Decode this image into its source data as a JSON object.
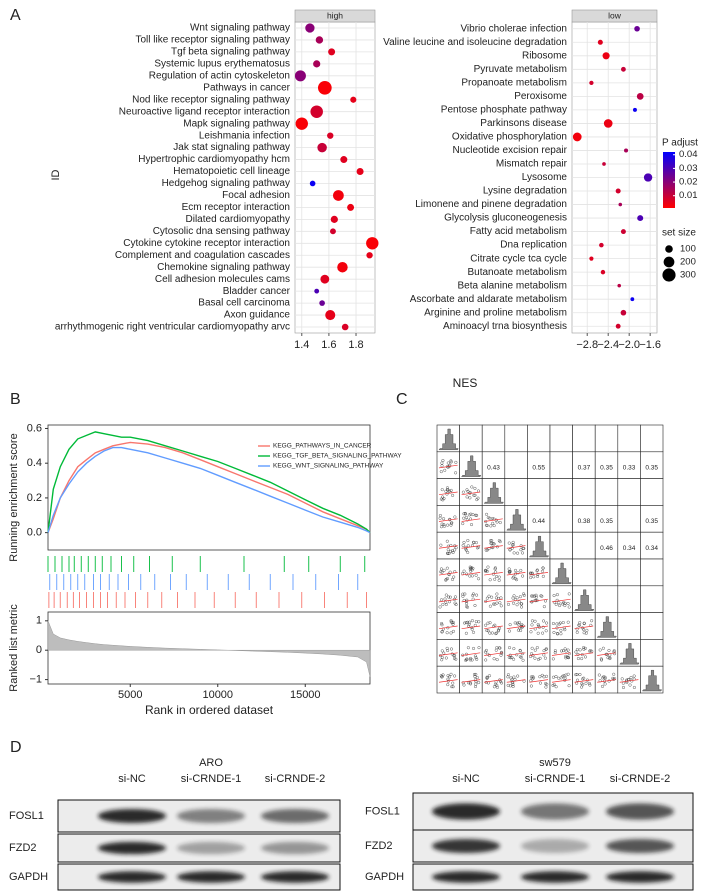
{
  "panel_labels": [
    "A",
    "B",
    "C",
    "D"
  ],
  "panel_a": {
    "y_label": "ID",
    "x_label": "NES",
    "color_legend": {
      "title": "P adjust",
      "ticks": [
        0.04,
        0.03,
        0.02,
        0.01
      ],
      "lim": [
        0.001,
        0.042
      ],
      "low_color": "#ff0000",
      "high_color": "#0000ff"
    },
    "size_legend": {
      "title": "set size",
      "values": [
        100,
        200,
        300
      ]
    }
  },
  "chart_data": [
    {
      "type": "dotplot",
      "strip": "high",
      "categories": [
        "Wnt signaling pathway",
        "Toll like receptor signaling pathway",
        "Tgf beta signaling pathway",
        "Systemic lupus erythematosus",
        "Regulation of actin cytoskeleton",
        "Pathways in cancer",
        "Nod like receptor signaling pathway",
        "Neuroactive ligand receptor interaction",
        "Mapk signaling pathway",
        "Leishmania infection",
        "Jak stat signaling pathway",
        "Hypertrophic cardiomyopathy hcm",
        "Hematopoietic cell lineage",
        "Hedgehog signaling pathway",
        "Focal adhesion",
        "Ecm receptor interaction",
        "Dilated cardiomyopathy",
        "Cytosolic dna sensing pathway",
        "Cytokine cytokine receptor interaction",
        "Complement and coagulation cascades",
        "Chemokine signaling pathway",
        "Cell adhesion molecules cams",
        "Bladder cancer",
        "Basal cell carcinoma",
        "Axon guidance",
        "arrhythmogenic right ventricular cardiomyopathy arvc"
      ],
      "values": [
        1.46,
        1.53,
        1.62,
        1.51,
        1.39,
        1.57,
        1.78,
        1.51,
        1.4,
        1.61,
        1.55,
        1.71,
        1.83,
        1.48,
        1.67,
        1.76,
        1.64,
        1.63,
        1.92,
        1.9,
        1.7,
        1.57,
        1.51,
        1.55,
        1.61,
        1.72
      ],
      "sizes": [
        150,
        95,
        85,
        90,
        210,
        325,
        65,
        270,
        265,
        70,
        155,
        85,
        85,
        55,
        200,
        84,
        90,
        60,
        265,
        70,
        190,
        135,
        40,
        55,
        175,
        75
      ],
      "padj": [
        0.02,
        0.015,
        0.006,
        0.015,
        0.02,
        0.002,
        0.005,
        0.008,
        0.002,
        0.007,
        0.01,
        0.006,
        0.005,
        0.04,
        0.003,
        0.004,
        0.006,
        0.008,
        0.002,
        0.005,
        0.003,
        0.006,
        0.03,
        0.025,
        0.005,
        0.007
      ],
      "xlim": [
        1.35,
        1.94
      ],
      "xticks": [
        1.4,
        1.6,
        1.8
      ],
      "grid": true
    },
    {
      "type": "dotplot",
      "strip": "low",
      "categories": [
        "Vibrio cholerae infection",
        "Valine leucine and isoleucine degradation",
        "Ribosome",
        "Pyruvate metabolism",
        "Propanoate metabolism",
        "Peroxisome",
        "Pentose phosphate pathway",
        "Parkinsons disease",
        "Oxidative phosphorylation",
        "Nucleotide excision repair",
        "Mismatch repair",
        "Lysosome",
        "Lysine degradation",
        "Limonene and pinene degradation",
        "Glycolysis gluconeogenesis",
        "Fatty acid metabolism",
        "Dna replication",
        "Citrate cycle tca cycle",
        "Butanoate metabolism",
        "Beta alanine metabolism",
        "Ascorbate and aldarate metabolism",
        "Arginine and proline metabolism",
        "Aminoacyl trna biosynthesis"
      ],
      "values": [
        -1.85,
        -2.55,
        -2.44,
        -2.11,
        -2.72,
        -1.79,
        -1.89,
        -2.4,
        -2.99,
        -2.06,
        -2.48,
        -1.64,
        -2.21,
        -2.17,
        -1.79,
        -2.11,
        -2.53,
        -2.72,
        -2.5,
        -2.19,
        -1.94,
        -2.11,
        -2.21
      ],
      "sizes": [
        54,
        44,
        88,
        40,
        32,
        79,
        27,
        130,
        133,
        28,
        23,
        121,
        44,
        22,
        62,
        42,
        36,
        30,
        34,
        22,
        25,
        54,
        41
      ],
      "padj": [
        0.025,
        0.006,
        0.004,
        0.01,
        0.008,
        0.012,
        0.04,
        0.004,
        0.003,
        0.015,
        0.01,
        0.03,
        0.008,
        0.015,
        0.03,
        0.009,
        0.008,
        0.006,
        0.007,
        0.012,
        0.04,
        0.01,
        0.008
      ],
      "xlim": [
        -3.09,
        -1.47
      ],
      "xticks": [
        {
          "value": -2.8,
          "label": "−2.8"
        },
        {
          "value": -2.4,
          "label": "−2.4"
        },
        {
          "value": -2.0,
          "label": "−2.0"
        },
        {
          "value": -1.6,
          "label": "−1.6"
        }
      ],
      "grid": true
    },
    {
      "type": "gsea",
      "y_label": "Running enrichment score",
      "x": [
        300,
        600,
        1000,
        1500,
        2000,
        2500,
        3000,
        3500,
        4000,
        4500,
        5000,
        6000,
        7000,
        8000,
        9000,
        10000,
        11000,
        12000,
        13000,
        14000,
        15000,
        16000,
        17000,
        18000,
        18500,
        18700
      ],
      "series": [
        {
          "name": "KEGG_PATHWAYS_IN_CANCER",
          "color": "#f8766d",
          "values": [
            0,
            0.08,
            0.2,
            0.3,
            0.38,
            0.42,
            0.46,
            0.48,
            0.5,
            0.51,
            0.52,
            0.51,
            0.49,
            0.46,
            0.42,
            0.38,
            0.34,
            0.3,
            0.26,
            0.22,
            0.17,
            0.12,
            0.08,
            0.04,
            0.02,
            0
          ],
          "hits": [
            350,
            650,
            1000,
            1400,
            1750,
            2100,
            2500,
            2900,
            3300,
            3700,
            4200,
            4700,
            5300,
            6000,
            6800,
            7700,
            8700,
            9800,
            11000,
            12200,
            13500,
            14800,
            16100,
            17400,
            18500
          ]
        },
        {
          "name": "KEGG_TGF_BETA_SIGNALING_PATHWAY",
          "color": "#00ba38",
          "values": [
            0,
            0.25,
            0.38,
            0.48,
            0.54,
            0.56,
            0.58,
            0.57,
            0.56,
            0.55,
            0.55,
            0.53,
            0.5,
            0.47,
            0.44,
            0.41,
            0.37,
            0.33,
            0.29,
            0.24,
            0.19,
            0.14,
            0.1,
            0.05,
            0.02,
            0
          ],
          "hits": [
            300,
            700,
            1100,
            1500,
            1800,
            2200,
            2600,
            3000,
            3400,
            3900,
            4500,
            5200,
            6100,
            7400,
            9000,
            11500,
            13800,
            15200,
            17000,
            18400
          ]
        },
        {
          "name": "KEGG_WNT_SIGNALING_PATHWAY",
          "color": "#619cff",
          "values": [
            0,
            0.1,
            0.2,
            0.28,
            0.35,
            0.4,
            0.44,
            0.47,
            0.49,
            0.49,
            0.48,
            0.46,
            0.43,
            0.4,
            0.37,
            0.33,
            0.29,
            0.25,
            0.21,
            0.17,
            0.13,
            0.09,
            0.06,
            0.03,
            0.01,
            0
          ],
          "hits": [
            400,
            800,
            1200,
            1600,
            2000,
            2400,
            2900,
            3300,
            3800,
            4300,
            4900,
            5600,
            6400,
            7300,
            8200,
            9400,
            10600,
            11800,
            13000,
            14300,
            15600,
            16900,
            18000
          ]
        }
      ],
      "xlim": [
        300,
        18700
      ],
      "ylim": [
        -0.1,
        0.62
      ],
      "yticks": [
        {
          "value": 0,
          "label": "0.0"
        },
        0.2,
        0.4,
        0.6
      ]
    },
    {
      "type": "area",
      "y_label": "Ranked list metric",
      "x_label": "Rank in ordered dataset",
      "color": "#bdbdbd",
      "x": [
        300,
        600,
        1000,
        1500,
        2000,
        2500,
        3000,
        3500,
        4000,
        4500,
        5000,
        6000,
        7000,
        8000,
        9000,
        10000,
        11000,
        12000,
        13000,
        14000,
        15000,
        16000,
        17000,
        18000,
        18500,
        18700
      ],
      "values": [
        1.0,
        0.55,
        0.42,
        0.35,
        0.3,
        0.26,
        0.22,
        0.19,
        0.17,
        0.15,
        0.13,
        0.1,
        0.07,
        0.05,
        0.03,
        0.01,
        -0.01,
        -0.03,
        -0.05,
        -0.07,
        -0.1,
        -0.13,
        -0.17,
        -0.23,
        -0.4,
        -0.9
      ],
      "xlim": [
        300,
        18700
      ],
      "xticks": [
        5000,
        10000,
        15000
      ],
      "ylim": [
        -1.15,
        1.3
      ],
      "yticks": [
        {
          "value": -1,
          "label": "−1"
        },
        0,
        1
      ]
    }
  ],
  "panel_c": {
    "cells": [
      [
        null,
        null,
        null,
        null,
        null,
        null,
        null,
        null,
        null,
        null
      ],
      [
        null,
        null,
        0.43,
        null,
        0.55,
        null,
        0.37,
        0.35,
        0.33,
        0.35
      ],
      [
        null,
        null,
        null,
        null,
        null,
        null,
        null,
        null,
        null,
        null
      ],
      [
        null,
        null,
        null,
        null,
        0.44,
        null,
        0.38,
        0.35,
        null,
        0.35
      ],
      [
        null,
        null,
        null,
        null,
        null,
        null,
        null,
        0.46,
        0.34,
        0.34
      ],
      [
        null,
        null,
        null,
        null,
        null,
        null,
        null,
        null,
        null,
        null
      ],
      [
        null,
        null,
        null,
        null,
        null,
        null,
        null,
        null,
        null,
        null
      ],
      [
        null,
        null,
        null,
        null,
        null,
        null,
        null,
        null,
        null,
        null
      ],
      [
        null,
        null,
        null,
        null,
        null,
        null,
        null,
        null,
        null,
        null
      ],
      [
        null,
        null,
        null,
        null,
        null,
        null,
        null,
        null,
        null,
        null
      ]
    ]
  },
  "panel_d": {
    "rows": [
      "FOSL1",
      "FZD2",
      "GAPDH"
    ],
    "blots": [
      {
        "cell_line": "ARO",
        "lanes": [
          "si-NC",
          "si-CRNDE-1",
          "si-CRNDE-2"
        ]
      },
      {
        "cell_line": "sw579",
        "lanes": [
          "si-NC",
          "si-CRNDE-1",
          "si-CRNDE-2"
        ]
      }
    ]
  }
}
